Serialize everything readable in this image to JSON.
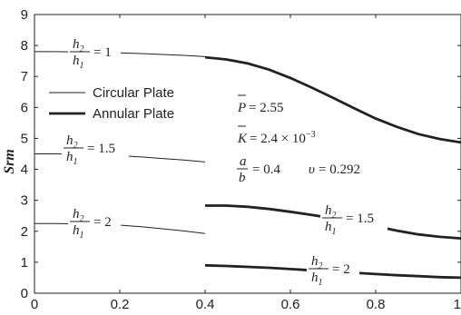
{
  "chart_data": {
    "type": "line",
    "title": "",
    "xlabel": "",
    "ylabel": "Srm",
    "xlim": [
      0,
      1
    ],
    "ylim": [
      0,
      9
    ],
    "xticks": [
      "0",
      "0.2",
      "0.4",
      "0.6",
      "0.8",
      "1"
    ],
    "yticks": [
      "0",
      "1",
      "2",
      "3",
      "4",
      "5",
      "6",
      "7",
      "8",
      "9"
    ],
    "grid": false,
    "legend": {
      "placement": "upper-left",
      "entries": [
        {
          "name": "Circular Plate",
          "style": "thin"
        },
        {
          "name": "Annular Plate",
          "style": "thick"
        }
      ]
    },
    "params": {
      "P": "2.55",
      "K_base": "2.4 × 10",
      "K_exp": "−3",
      "ab": "0.4",
      "nu": "0.292"
    },
    "series": [
      {
        "kind": "circular",
        "ratio": "1",
        "x": [
          0,
          0.02,
          0.05,
          0.1,
          0.15,
          0.2,
          0.25,
          0.3,
          0.35,
          0.4
        ],
        "y": [
          7.8,
          7.8,
          7.8,
          7.79,
          7.78,
          7.76,
          7.74,
          7.71,
          7.68,
          7.64
        ]
      },
      {
        "kind": "circular",
        "ratio": "1.5",
        "x": [
          0,
          0.02,
          0.05,
          0.1,
          0.15,
          0.2,
          0.25,
          0.3,
          0.35,
          0.4
        ],
        "y": [
          4.5,
          4.5,
          4.5,
          4.49,
          4.47,
          4.44,
          4.4,
          4.35,
          4.3,
          4.24
        ]
      },
      {
        "kind": "circular",
        "ratio": "2",
        "x": [
          0,
          0.02,
          0.05,
          0.1,
          0.15,
          0.2,
          0.25,
          0.3,
          0.35,
          0.4
        ],
        "y": [
          2.25,
          2.25,
          2.25,
          2.24,
          2.23,
          2.2,
          2.15,
          2.08,
          2.01,
          1.93
        ]
      },
      {
        "kind": "annular",
        "ratio": "1",
        "x": [
          0.4,
          0.45,
          0.5,
          0.55,
          0.6,
          0.65,
          0.7,
          0.75,
          0.8,
          0.85,
          0.9,
          0.95,
          1.0
        ],
        "y": [
          7.62,
          7.55,
          7.42,
          7.22,
          6.95,
          6.64,
          6.31,
          5.97,
          5.64,
          5.37,
          5.14,
          4.98,
          4.87
        ]
      },
      {
        "kind": "annular",
        "ratio": "1.5",
        "x": [
          0.4,
          0.45,
          0.5,
          0.55,
          0.6,
          0.65,
          0.7,
          0.75,
          0.8,
          0.85,
          0.9,
          0.95,
          1.0
        ],
        "y": [
          2.83,
          2.83,
          2.79,
          2.72,
          2.63,
          2.53,
          2.42,
          2.3,
          2.16,
          2.02,
          1.9,
          1.82,
          1.77
        ]
      },
      {
        "kind": "annular",
        "ratio": "2",
        "x": [
          0.4,
          0.45,
          0.5,
          0.55,
          0.6,
          0.65,
          0.7,
          0.75,
          0.8,
          0.85,
          0.9,
          0.95,
          1.0
        ],
        "y": [
          0.9,
          0.88,
          0.85,
          0.82,
          0.78,
          0.74,
          0.7,
          0.66,
          0.62,
          0.58,
          0.55,
          0.52,
          0.5
        ]
      }
    ]
  }
}
